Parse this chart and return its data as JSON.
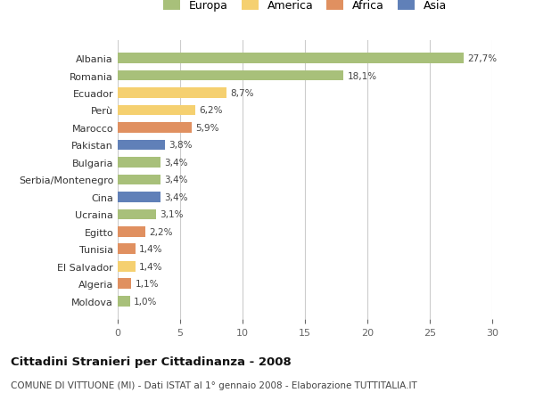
{
  "countries": [
    "Albania",
    "Romania",
    "Ecuador",
    "Perù",
    "Marocco",
    "Pakistan",
    "Bulgaria",
    "Serbia/Montenegro",
    "Cina",
    "Ucraina",
    "Egitto",
    "Tunisia",
    "El Salvador",
    "Algeria",
    "Moldova"
  ],
  "values": [
    27.7,
    18.1,
    8.7,
    6.2,
    5.9,
    3.8,
    3.4,
    3.4,
    3.4,
    3.1,
    2.2,
    1.4,
    1.4,
    1.1,
    1.0
  ],
  "labels": [
    "27,7%",
    "18,1%",
    "8,7%",
    "6,2%",
    "5,9%",
    "3,8%",
    "3,4%",
    "3,4%",
    "3,4%",
    "3,1%",
    "2,2%",
    "1,4%",
    "1,4%",
    "1,1%",
    "1,0%"
  ],
  "continents": [
    "Europa",
    "Europa",
    "America",
    "America",
    "Africa",
    "Asia",
    "Europa",
    "Europa",
    "Asia",
    "Europa",
    "Africa",
    "Africa",
    "America",
    "Africa",
    "Europa"
  ],
  "colors": {
    "Europa": "#a8c07a",
    "America": "#f5d070",
    "Africa": "#e09060",
    "Asia": "#6080b8"
  },
  "legend_order": [
    "Europa",
    "America",
    "Africa",
    "Asia"
  ],
  "legend_colors": [
    "#a8c07a",
    "#f5d070",
    "#e09060",
    "#6080b8"
  ],
  "xlim": [
    0,
    30
  ],
  "xticks": [
    0,
    5,
    10,
    15,
    20,
    25,
    30
  ],
  "title": "Cittadini Stranieri per Cittadinanza - 2008",
  "subtitle": "COMUNE DI VITTUONE (MI) - Dati ISTAT al 1° gennaio 2008 - Elaborazione TUTTITALIA.IT",
  "bg_color": "#ffffff",
  "grid_color": "#cccccc",
  "bar_height": 0.6
}
